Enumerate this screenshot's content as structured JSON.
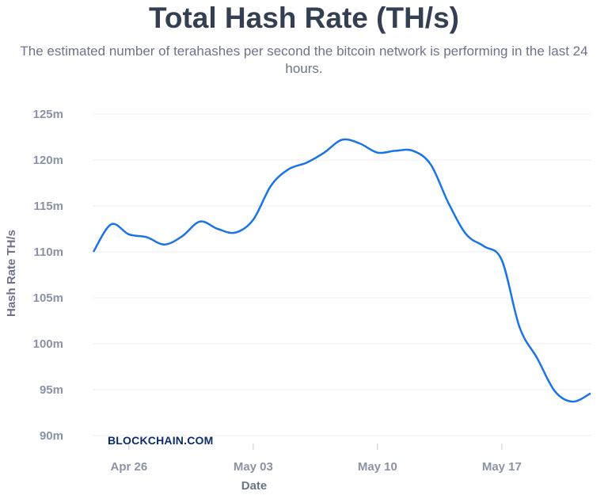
{
  "chart_data": {
    "type": "line",
    "title": "Total Hash Rate (TH/s)",
    "subtitle": "The estimated number of terahashes per second the bitcoin network is performing in the last 24 hours.",
    "xlabel": "Date",
    "ylabel": "Hash Rate TH/s",
    "ylim": [
      90,
      125
    ],
    "y_unit": "m",
    "yticks": [
      "90m",
      "95m",
      "100m",
      "105m",
      "110m",
      "115m",
      "120m",
      "125m"
    ],
    "xticks": [
      "Apr 26",
      "May 03",
      "May 10",
      "May 17"
    ],
    "grid": true,
    "line_color": "#1a73e8",
    "watermark": "BLOCKCHAIN.COM",
    "series": [
      {
        "x": [
          "Apr 24",
          "Apr 25",
          "Apr 26",
          "Apr 27",
          "Apr 28",
          "Apr 29",
          "Apr 30",
          "May 01",
          "May 02",
          "May 03",
          "May 04",
          "May 05",
          "May 06",
          "May 07",
          "May 08",
          "May 09",
          "May 10",
          "May 11",
          "May 12",
          "May 13",
          "May 14",
          "May 15",
          "May 16",
          "May 17",
          "May 18",
          "May 19",
          "May 20",
          "May 21",
          "May 22"
        ],
        "values": [
          110.0,
          113.0,
          111.9,
          111.6,
          110.8,
          111.7,
          113.3,
          112.5,
          112.1,
          113.5,
          117.2,
          119.0,
          119.7,
          120.8,
          122.2,
          121.8,
          120.8,
          121.0,
          121.0,
          119.5,
          115.3,
          111.9,
          110.6,
          109.1,
          101.8,
          98.4,
          94.8,
          93.7,
          94.6
        ]
      }
    ]
  }
}
